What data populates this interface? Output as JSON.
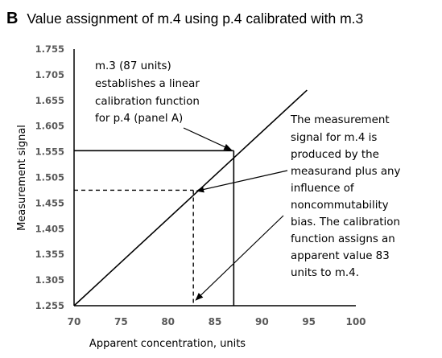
{
  "chart_data": {
    "type": "line",
    "panel_label": "B",
    "title": "Value assignment of m.4 using p.4 calibrated with m.3",
    "xlabel": "Apparent concentration, units",
    "ylabel": "Measurement signal",
    "xlim": [
      70,
      100
    ],
    "ylim": [
      1.255,
      1.755
    ],
    "x_ticks": [
      "70",
      "75",
      "80",
      "85",
      "90",
      "95",
      "100"
    ],
    "y_ticks": [
      "1.255",
      "1.305",
      "1.355",
      "1.405",
      "1.455",
      "1.505",
      "1.555",
      "1.605",
      "1.655",
      "1.705",
      "1.755"
    ],
    "grid": false,
    "legend": "none",
    "calibration_line": {
      "x": [
        70,
        94.8
      ],
      "y": [
        1.255,
        1.675
      ]
    },
    "m3_point": {
      "x": 87,
      "y": 1.557
    },
    "m4_point": {
      "x": 82.7,
      "y": 1.48
    },
    "annotations": [
      {
        "lines": [
          "m.3 (87 units)",
          "establishes a linear",
          "calibration function",
          "for p.4 (panel A)"
        ],
        "arrow_to": {
          "x": 87,
          "y": 1.557
        }
      },
      {
        "lines": [
          "The measurement",
          "signal for m.4 is",
          "produced by the",
          "measurand plus any",
          "influence of",
          "noncommutability",
          "bias. The calibration",
          "function assigns an",
          "apparent value 83",
          "units to m.4."
        ],
        "arrow_to": [
          {
            "x": 82.7,
            "y": 1.48
          },
          {
            "x": 82.7,
            "y": 1.255
          }
        ]
      }
    ]
  }
}
